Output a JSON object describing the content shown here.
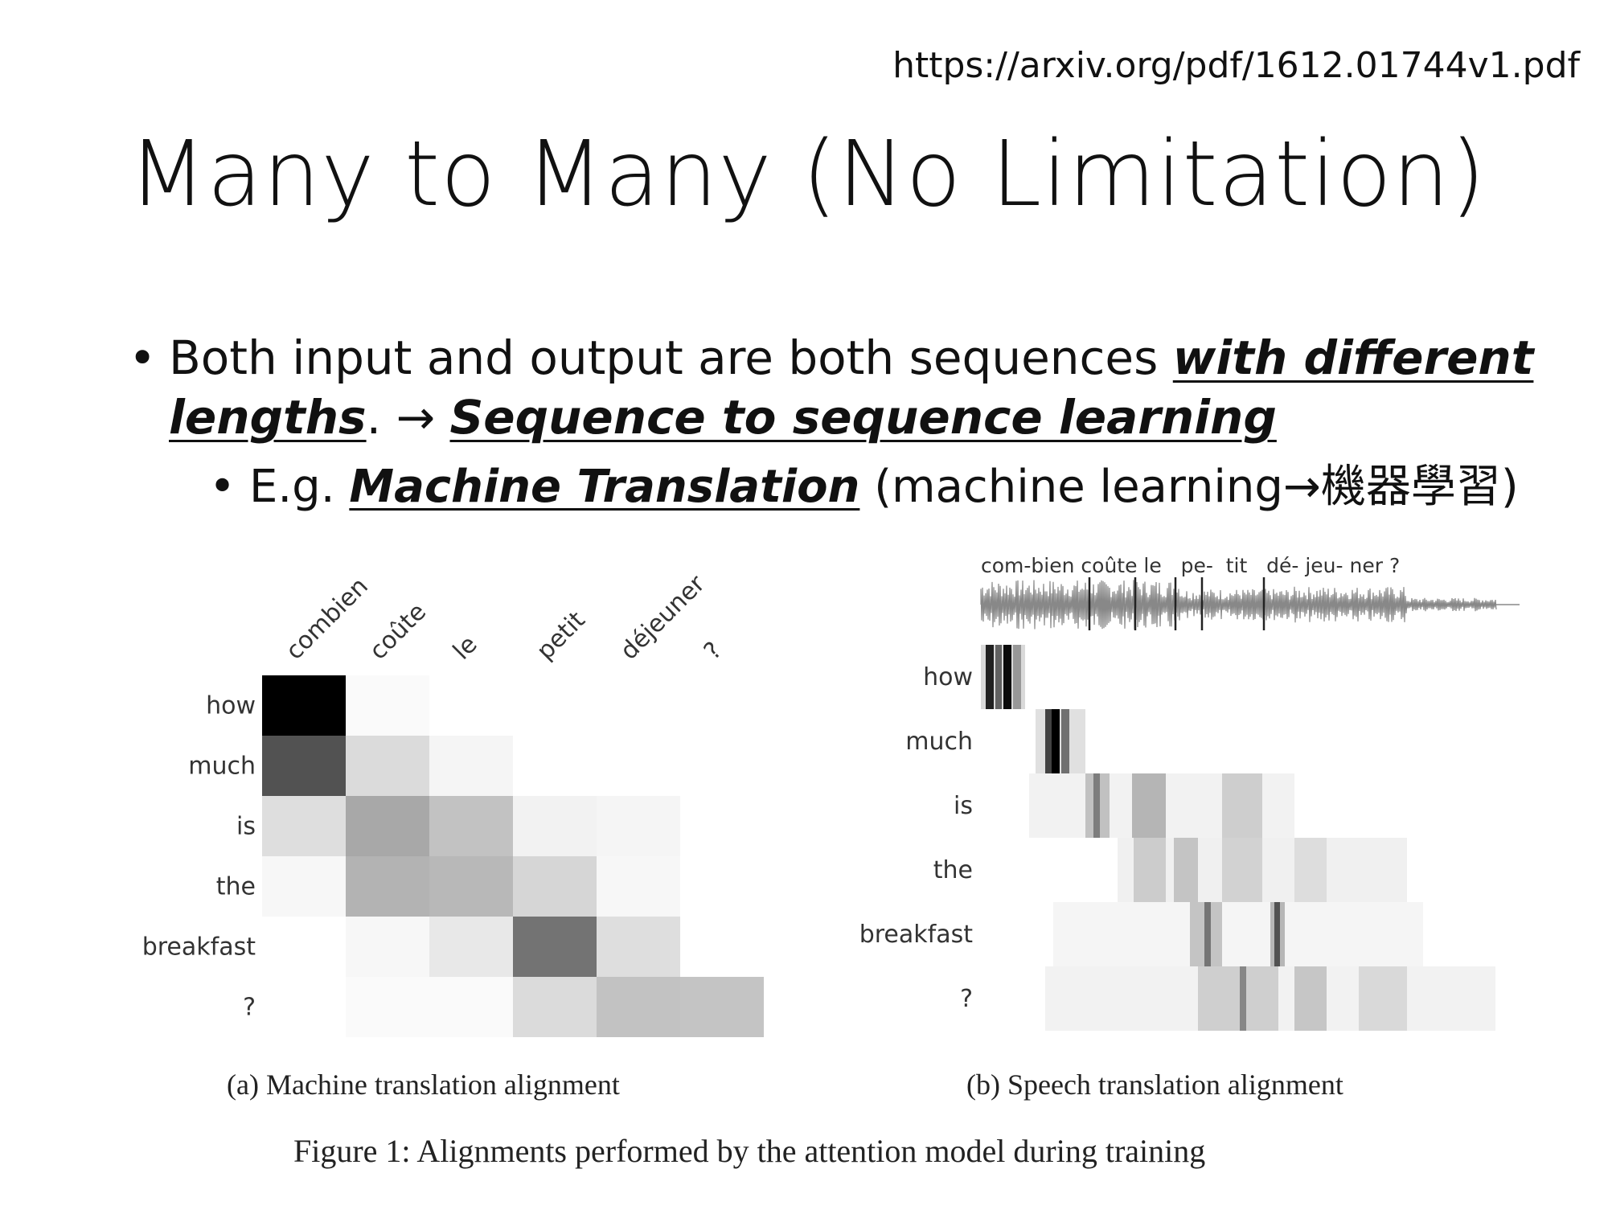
{
  "url": "https://arxiv.org/pdf/1612.01744v1.pdf",
  "title": "Many to Many (No Limitation)",
  "bullet1": {
    "part1": "Both input and output are both sequences ",
    "emph1": "with different lengths",
    "part2": ". → ",
    "emph2": "Sequence to sequence learning"
  },
  "bullet2": {
    "part1": "E.g. ",
    "emph": "Machine Translation",
    "part2": " (machine learning→機器學習)"
  },
  "panel_a": {
    "caption": "(a) Machine translation alignment",
    "columns": [
      "combien",
      "coûte",
      "le",
      "petit",
      "déjeuner",
      "?"
    ],
    "rows": [
      "how",
      "much",
      "is",
      "the",
      "breakfast",
      "?"
    ],
    "matrix": [
      [
        1.0,
        0.02,
        0.0,
        0.0,
        0.0,
        0.0
      ],
      [
        0.68,
        0.14,
        0.04,
        0.0,
        0.0,
        0.0
      ],
      [
        0.13,
        0.34,
        0.24,
        0.05,
        0.04,
        0.0
      ],
      [
        0.03,
        0.3,
        0.28,
        0.16,
        0.03,
        0.0
      ],
      [
        0.0,
        0.03,
        0.09,
        0.55,
        0.13,
        0.0
      ],
      [
        0.0,
        0.02,
        0.02,
        0.14,
        0.24,
        0.23
      ]
    ]
  },
  "panel_b": {
    "caption": "(b) Speech translation alignment",
    "syllables": "com-bien coûte le   pe-  tit   dé- jeu- ner ?",
    "rows": [
      "how",
      "much",
      "is",
      "the",
      "breakfast",
      "?"
    ]
  },
  "figure_caption": "Figure 1:  Alignments performed by the attention model during training"
}
